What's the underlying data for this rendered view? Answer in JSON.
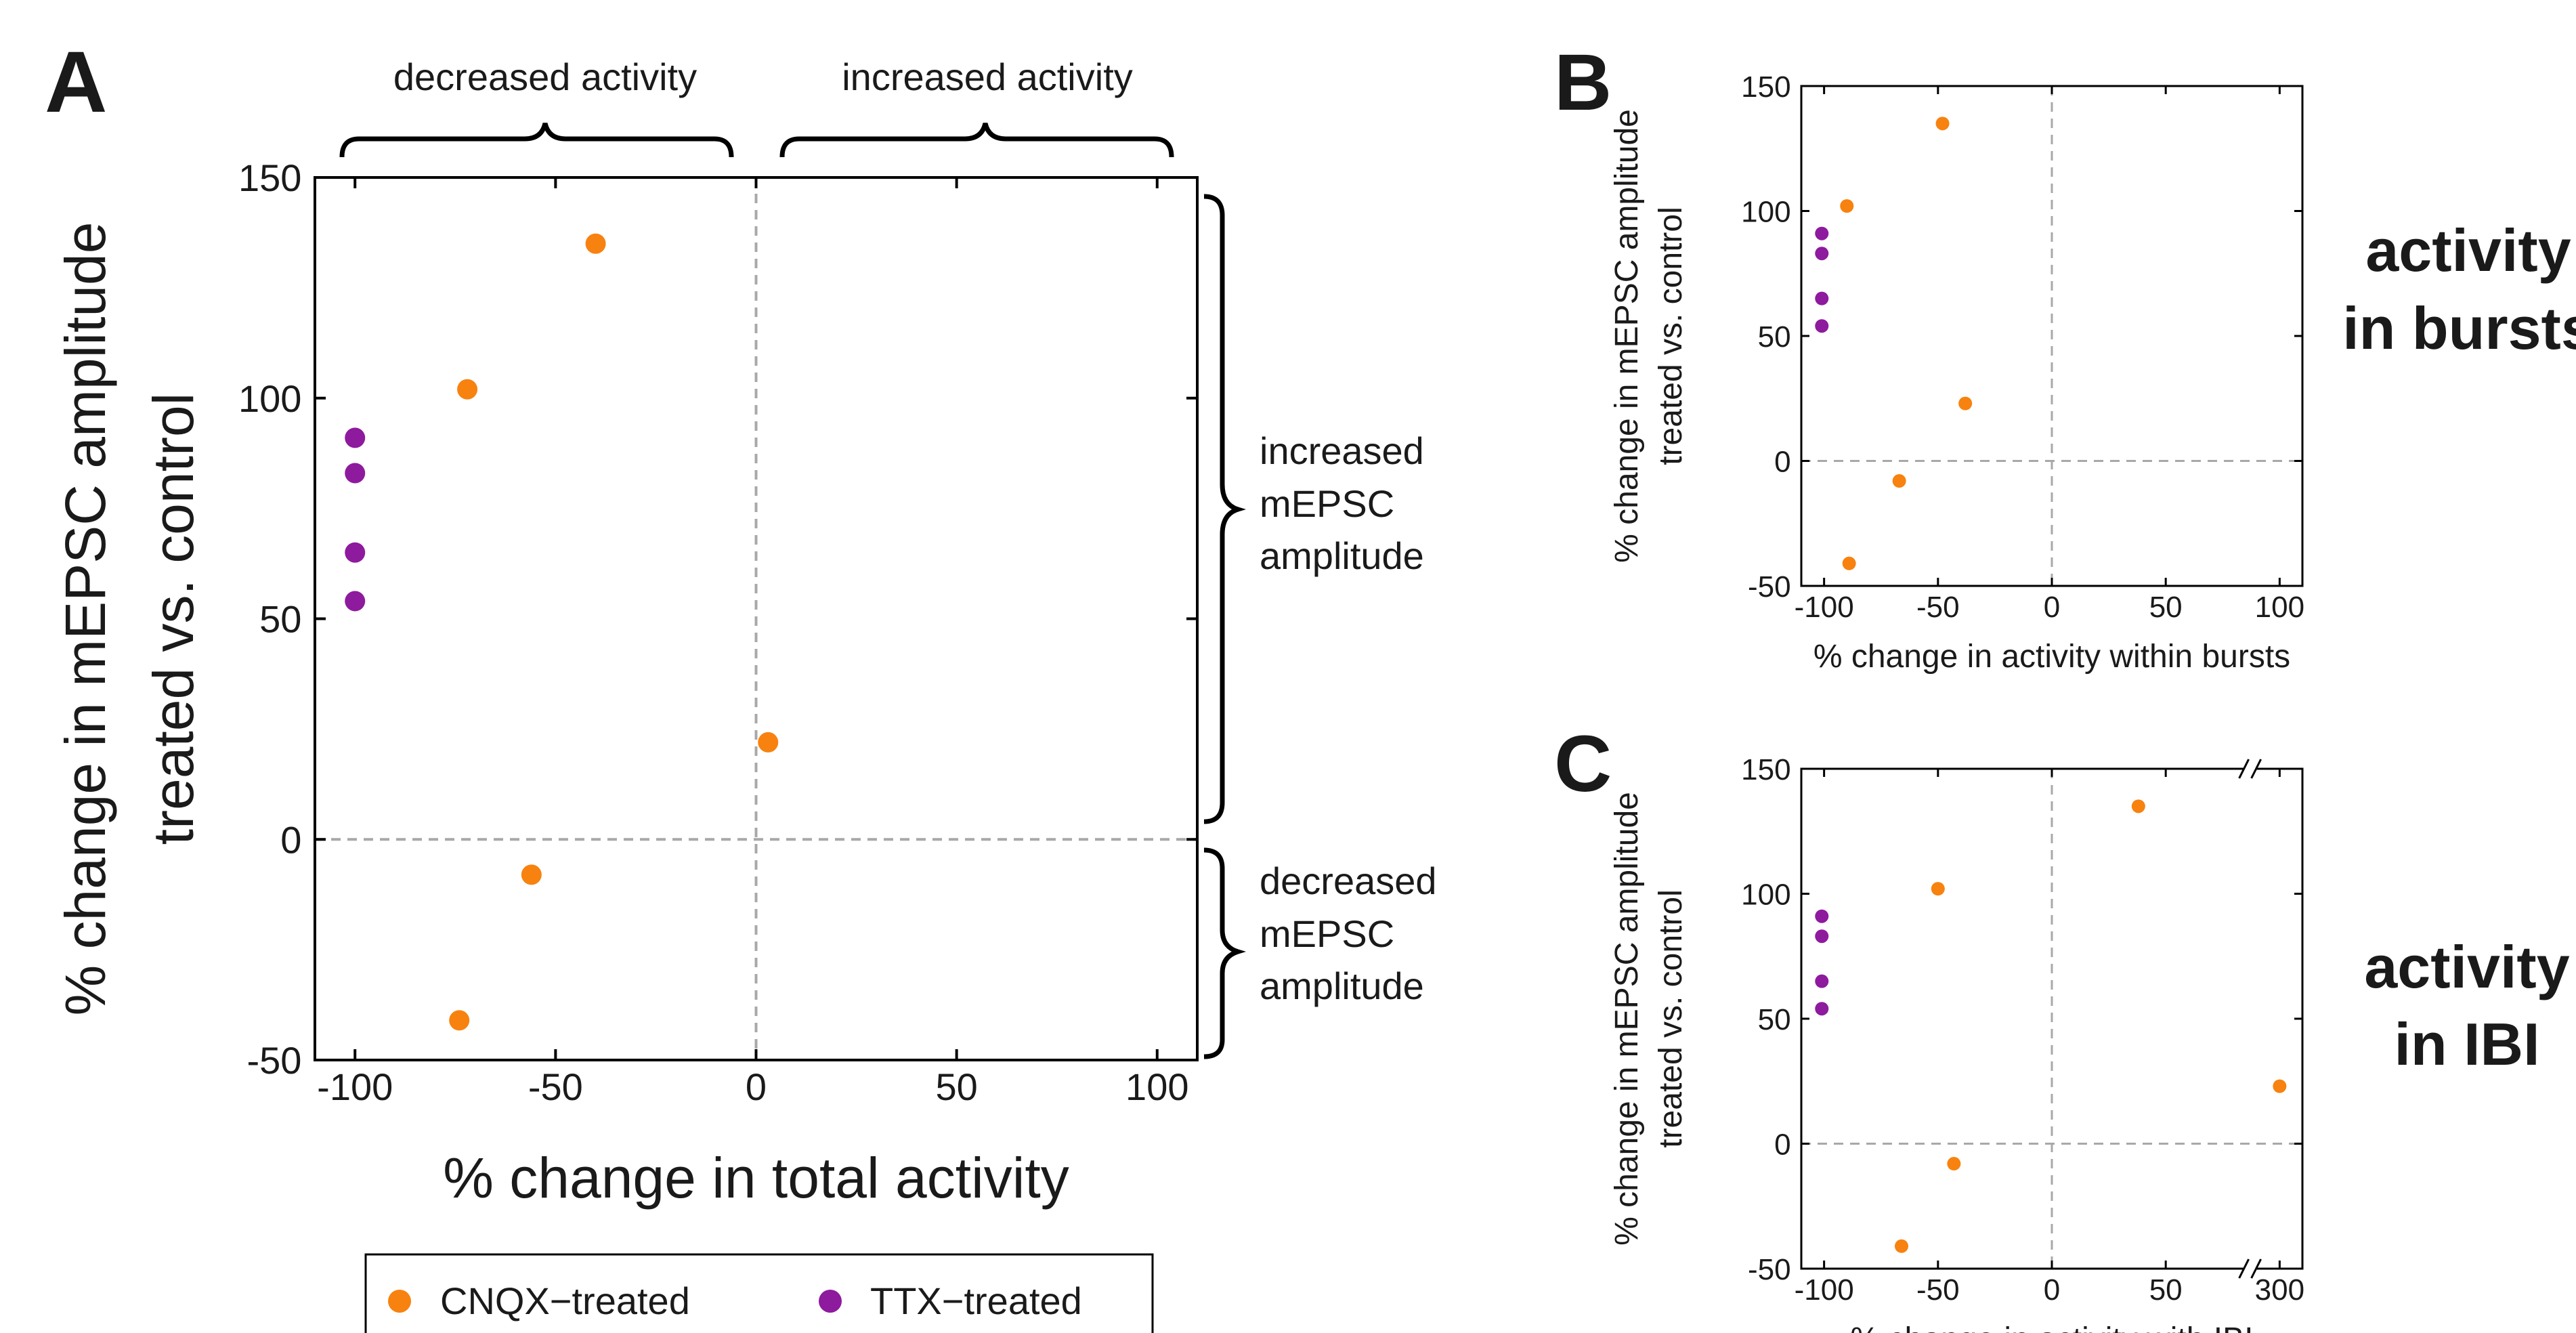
{
  "colors": {
    "cnqx": "#f7820f",
    "ttx": "#8e1a9e",
    "axis": "#000000",
    "ref_line": "#a8a8a8"
  },
  "legend": {
    "entries": [
      {
        "label": "CNQX−treated",
        "color": "#f7820f"
      },
      {
        "label": "TTX−treated",
        "color": "#8e1a9e"
      }
    ]
  },
  "panels": {
    "A": {
      "letter": "A",
      "top_annotations": [
        "decreased activity",
        "increased activity"
      ],
      "right_annotations": [
        [
          "increased",
          "mEPSC",
          "amplitude"
        ],
        [
          "decreased",
          "mEPSC",
          "amplitude"
        ]
      ]
    },
    "B": {
      "letter": "B",
      "side_label": [
        "activity",
        "in bursts"
      ]
    },
    "C": {
      "letter": "C",
      "side_label": [
        "activity",
        "in IBI"
      ]
    }
  },
  "chart_data": [
    {
      "panel": "A",
      "type": "scatter",
      "title": "",
      "xlabel": "% change in total activity",
      "ylabel": [
        "% change in mEPSC amplitude",
        "treated vs. control"
      ],
      "xlim": [
        -110,
        110
      ],
      "ylim": [
        -50,
        150
      ],
      "xticks": [
        -100,
        -50,
        0,
        50,
        100
      ],
      "xtick_labels": [
        "-100",
        "-50",
        "0",
        "50",
        "100"
      ],
      "yticks": [
        -50,
        0,
        50,
        100,
        150
      ],
      "ytick_labels": [
        "-50",
        "0",
        "50",
        "100",
        "150"
      ],
      "reference_lines": {
        "x": 0,
        "y": 0
      },
      "grid": false,
      "series": [
        {
          "name": "CNQX−treated",
          "color": "#f7820f",
          "points": [
            [
              -40,
              135
            ],
            [
              -72,
              102
            ],
            [
              3,
              22
            ],
            [
              -56,
              -8
            ],
            [
              -74,
              -41
            ]
          ]
        },
        {
          "name": "TTX−treated",
          "color": "#8e1a9e",
          "points": [
            [
              -100,
              91
            ],
            [
              -100,
              83
            ],
            [
              -100,
              65
            ],
            [
              -100,
              54
            ]
          ]
        }
      ]
    },
    {
      "panel": "B",
      "type": "scatter",
      "title": "",
      "xlabel": "% change in activity within bursts",
      "ylabel": [
        "% change in mEPSC amplitude",
        "treated vs. control"
      ],
      "xlim": [
        -110,
        110
      ],
      "ylim": [
        -50,
        150
      ],
      "xticks": [
        -100,
        -50,
        0,
        50,
        100
      ],
      "xtick_labels": [
        "-100",
        "-50",
        "0",
        "50",
        "100"
      ],
      "yticks": [
        -50,
        0,
        50,
        100,
        150
      ],
      "ytick_labels": [
        "-50",
        "0",
        "50",
        "100",
        "150"
      ],
      "reference_lines": {
        "x": 0,
        "y": 0
      },
      "grid": false,
      "series": [
        {
          "name": "CNQX−treated",
          "color": "#f7820f",
          "points": [
            [
              -48,
              135
            ],
            [
              -90,
              102
            ],
            [
              -38,
              23
            ],
            [
              -67,
              -8
            ],
            [
              -89,
              -41
            ]
          ]
        },
        {
          "name": "TTX−treated",
          "color": "#8e1a9e",
          "points": [
            [
              -101,
              91
            ],
            [
              -101,
              83
            ],
            [
              -101,
              65
            ],
            [
              -101,
              54
            ]
          ]
        }
      ]
    },
    {
      "panel": "C",
      "type": "scatter",
      "title": "",
      "xlabel": "% change in activity with IBI",
      "ylabel": [
        "% change in mEPSC amplitude",
        "treated vs. control"
      ],
      "x_axis_break": {
        "after": 75,
        "jump_to": 300
      },
      "xlim": [
        -110,
        110
      ],
      "ylim": [
        -50,
        150
      ],
      "xticks": [
        -100,
        -50,
        0,
        50,
        300
      ],
      "xtick_labels": [
        "-100",
        "-50",
        "0",
        "50",
        "300"
      ],
      "yticks": [
        -50,
        0,
        50,
        100,
        150
      ],
      "ytick_labels": [
        "-50",
        "0",
        "50",
        "100",
        "150"
      ],
      "reference_lines": {
        "x": 0,
        "y": 0
      },
      "grid": false,
      "series": [
        {
          "name": "CNQX−treated",
          "color": "#f7820f",
          "points": [
            [
              38,
              135
            ],
            [
              -50,
              102
            ],
            [
              300,
              23
            ],
            [
              -43,
              -8
            ],
            [
              -66,
              -41
            ]
          ]
        },
        {
          "name": "TTX−treated",
          "color": "#8e1a9e",
          "points": [
            [
              -101,
              91
            ],
            [
              -101,
              83
            ],
            [
              -101,
              65
            ],
            [
              -101,
              54
            ]
          ]
        }
      ]
    }
  ]
}
